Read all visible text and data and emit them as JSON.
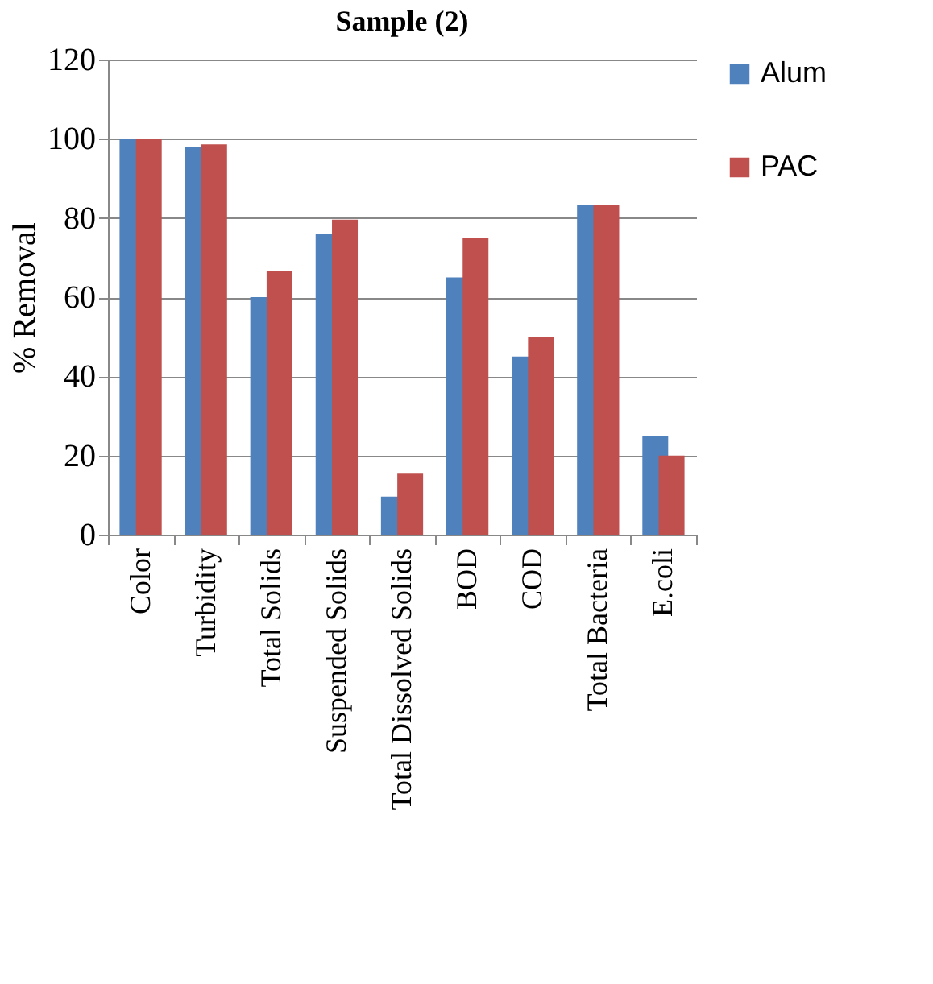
{
  "chart_data": {
    "type": "bar",
    "title": "Sample (2)",
    "ylabel": "% Removal",
    "categories": [
      "Color",
      "Turbidity",
      "Total Solids",
      "Suspended Solids",
      "Total Dissolved Solids",
      "BOD",
      "COD",
      "Total Bacteria",
      "E.coli"
    ],
    "series": [
      {
        "name": "Alum",
        "color": "#4f81bd",
        "values": [
          100,
          98,
          60,
          76,
          9.6,
          65,
          45,
          83.4,
          25
        ]
      },
      {
        "name": "PAC",
        "color": "#c0504d",
        "values": [
          100,
          98.6,
          66.7,
          79.6,
          15.4,
          75,
          50,
          83.4,
          20
        ]
      }
    ],
    "ylim": [
      0,
      120
    ],
    "yticks": [
      0,
      20,
      40,
      60,
      80,
      100,
      120
    ],
    "grid": "y",
    "legend": "right"
  }
}
